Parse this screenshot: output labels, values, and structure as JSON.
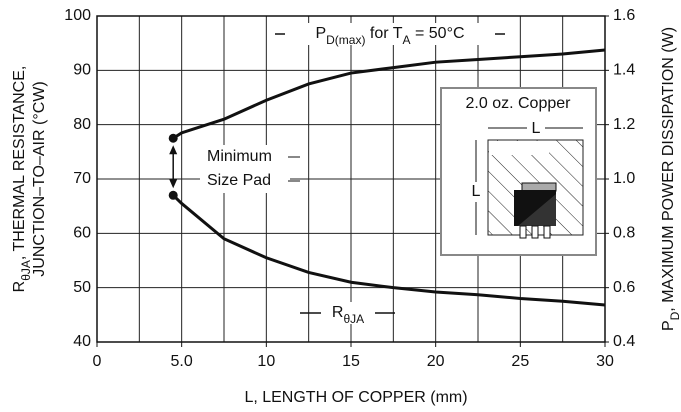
{
  "chart_data": {
    "type": "line",
    "x": [
      4.5,
      5,
      7.5,
      10,
      12.5,
      15,
      17.5,
      20,
      22.5,
      25,
      27.5,
      30
    ],
    "series": [
      {
        "label_parts": [
          {
            "text": "R"
          },
          {
            "text": "θJA",
            "sub": true
          }
        ],
        "color": "#111111",
        "values": [
          67,
          65.5,
          59,
          55.5,
          52.8,
          51,
          50,
          49.2,
          48.7,
          48,
          47.5,
          46.8
        ]
      },
      {
        "label_parts": [
          {
            "text": "P"
          },
          {
            "text": "D(max)",
            "sub": true
          },
          {
            "text": " for T"
          },
          {
            "text": "A",
            "sub": true
          },
          {
            "text": " = 50°C"
          }
        ],
        "color": "#111111",
        "axis": "y2",
        "values": [
          1.15,
          1.17,
          1.22,
          1.29,
          1.35,
          1.39,
          1.41,
          1.43,
          1.44,
          1.45,
          1.46,
          1.475
        ]
      }
    ],
    "xlim": [
      0,
      30
    ],
    "xticks": [
      0,
      {
        "value": 5,
        "label": "5.0"
      },
      10,
      15,
      20,
      25,
      30
    ],
    "x_grid": [
      0,
      2.5,
      5,
      7.5,
      10,
      12.5,
      15,
      17.5,
      20,
      22.5,
      25,
      27.5,
      30
    ],
    "ylim": [
      40,
      100
    ],
    "yticks": [
      40,
      50,
      60,
      70,
      80,
      90,
      100
    ],
    "y2lim": [
      0.4,
      1.6
    ],
    "y2ticks": [
      0.4,
      0.6,
      0.8,
      {
        "value": 1,
        "label": "1.0"
      },
      1.2,
      1.4,
      1.6
    ],
    "grid": true,
    "xlabel": "L, LENGTH OF COPPER (mm)",
    "ylabel_parts": [
      {
        "text": "R"
      },
      {
        "text": "θJA",
        "sub": true
      },
      {
        "text": ", THERMAL RESISTANCE,"
      }
    ],
    "ylabel_line2": "JUNCTION–TO–AIR (°CW)",
    "y2label_parts": [
      {
        "text": "P"
      },
      {
        "text": "D",
        "sub": true
      },
      {
        "text": ", MAXIMUM POWER DISSIPATION (W)"
      }
    ],
    "annotation_lines": [
      "Minimum",
      "Size Pad"
    ],
    "inset": {
      "title": "2.0 oz. Copper",
      "width_label": "L",
      "height_label": "L"
    }
  }
}
